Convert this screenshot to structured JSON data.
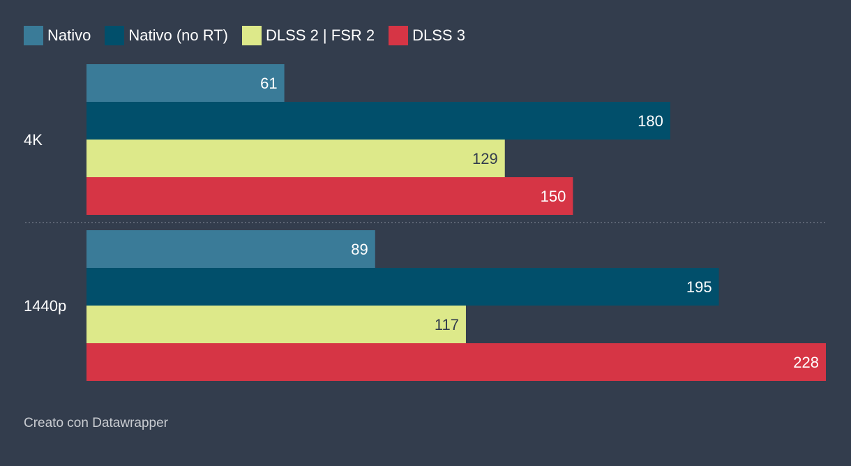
{
  "chart_data": {
    "type": "bar",
    "orientation": "horizontal",
    "categories": [
      "4K",
      "1440p"
    ],
    "series": [
      {
        "name": "Nativo",
        "color": "#3a7b98",
        "values": [
          61,
          89
        ]
      },
      {
        "name": "Nativo (no RT)",
        "color": "#014f6b",
        "values": [
          180,
          195
        ]
      },
      {
        "name": "DLSS 2 | FSR 2",
        "color": "#dde98a",
        "values": [
          129,
          117
        ]
      },
      {
        "name": "DLSS 3",
        "color": "#d63545",
        "values": [
          150,
          228
        ]
      }
    ],
    "xlim": [
      0,
      228
    ],
    "legend_position": "top-left",
    "grid": false
  },
  "footer": {
    "credit": "Creato con Datawrapper"
  },
  "colors": {
    "background": "#333d4d",
    "dark_label_text": "#333d4d",
    "light_label_text": "#ffffff",
    "separator": "#6b7280"
  }
}
